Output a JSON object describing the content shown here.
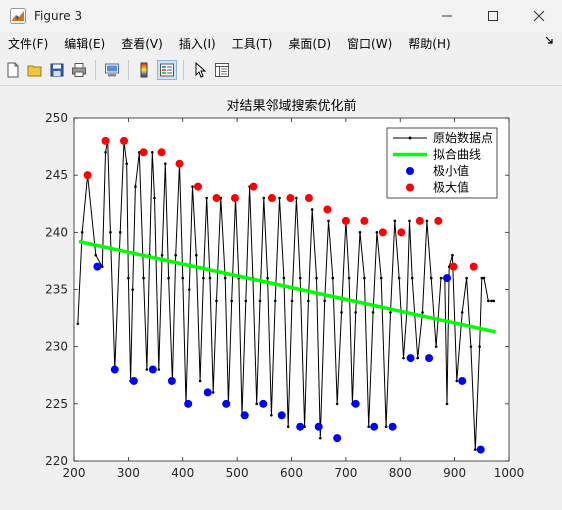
{
  "window": {
    "title": "Figure 3"
  },
  "menu": [
    "文件(F)",
    "编辑(E)",
    "查看(V)",
    "插入(I)",
    "工具(T)",
    "桌面(D)",
    "窗口(W)",
    "帮助(H)"
  ],
  "toolbar": [
    "new-figure-icon",
    "open-file-icon",
    "save-icon",
    "print-icon",
    "print-preview-icon",
    "colorbar-icon",
    "legend-icon",
    "pointer-icon",
    "property-inspector-icon"
  ],
  "chart_data": {
    "type": "line",
    "title": "对结果邻域搜索优化前",
    "xlim": [
      200,
      1000
    ],
    "ylim": [
      220,
      250
    ],
    "xticks": [
      200,
      300,
      400,
      500,
      600,
      700,
      800,
      900,
      1000
    ],
    "yticks": [
      220,
      225,
      230,
      235,
      240,
      245,
      250
    ],
    "legend": {
      "position": "top-right",
      "entries": [
        "原始数据点",
        "拟合曲线",
        "极小值",
        "极大值"
      ]
    },
    "series": [
      {
        "name": "原始数据点",
        "color": "#000000",
        "x": [
          207,
          215,
          225,
          240,
          252,
          258,
          262,
          267,
          275,
          285,
          292,
          297,
          300,
          304,
          308,
          313,
          320,
          328,
          334,
          339,
          344,
          348,
          356,
          362,
          368,
          374,
          381,
          387,
          394,
          400,
          406,
          412,
          418,
          425,
          432,
          438,
          444,
          450,
          456,
          462,
          470,
          478,
          484,
          490,
          497,
          503,
          509,
          516,
          523,
          529,
          536,
          542,
          549,
          556,
          563,
          570,
          578,
          586,
          594,
          601,
          609,
          616,
          624,
          631,
          638,
          646,
          653,
          661,
          668,
          676,
          684,
          692,
          700,
          706,
          712,
          718,
          726,
          734,
          742,
          750,
          757,
          765,
          774,
          782,
          790,
          798,
          806,
          812,
          817,
          822,
          832,
          841,
          849,
          857,
          866,
          875,
          882,
          886,
          890,
          896,
          904,
          914,
          922,
          930,
          938,
          946,
          950,
          954,
          962,
          968,
          972
        ],
        "y": [
          232,
          240,
          245,
          238,
          237,
          247,
          248,
          240,
          228,
          240,
          248,
          246,
          236,
          227,
          235,
          244,
          247,
          236,
          228,
          238,
          247,
          243,
          228,
          238,
          246,
          236,
          227,
          238,
          246,
          236,
          225,
          235,
          244,
          238,
          227,
          236,
          243,
          236,
          226,
          234,
          243,
          236,
          225,
          234,
          243,
          236,
          224,
          234,
          244,
          236,
          225,
          234,
          243,
          236,
          224,
          234,
          243,
          236,
          223,
          234,
          243,
          236,
          223,
          234,
          242,
          236,
          222,
          234,
          241,
          236,
          225,
          233,
          241,
          236,
          225,
          233,
          240,
          236,
          223,
          233,
          240,
          236,
          223,
          233,
          241,
          236,
          229,
          233,
          241,
          236,
          229,
          233,
          241,
          236,
          230,
          236,
          236,
          225,
          237,
          238,
          227,
          233,
          236,
          230,
          221,
          230,
          236,
          236,
          234,
          234,
          234
        ]
      },
      {
        "name": "拟合曲线",
        "color": "#00ff00",
        "x": [
          209,
          975
        ],
        "y": [
          239.2,
          231.3
        ]
      },
      {
        "name": "极小值",
        "color": "#0000ff",
        "x": [
          243,
          275,
          310,
          345,
          380,
          410,
          446,
          480,
          514,
          548,
          582,
          616,
          650,
          684,
          718,
          752,
          786,
          819,
          853,
          886,
          914,
          948
        ],
        "y": [
          237,
          228,
          227,
          228,
          227,
          225,
          226,
          225,
          224,
          225,
          224,
          223,
          223,
          222,
          225,
          223,
          223,
          229,
          229,
          236,
          227,
          221
        ]
      },
      {
        "name": "极大值",
        "color": "#ff0000",
        "x": [
          225,
          258,
          292,
          328,
          361,
          394,
          428,
          462,
          496,
          530,
          564,
          598,
          632,
          666,
          700,
          734,
          768,
          802,
          836,
          870,
          898,
          935
        ],
        "y": [
          245,
          248,
          248,
          247,
          247,
          246,
          244,
          243,
          243,
          244,
          243,
          243,
          243,
          242,
          241,
          241,
          240,
          240,
          241,
          241,
          237,
          237
        ]
      }
    ]
  }
}
